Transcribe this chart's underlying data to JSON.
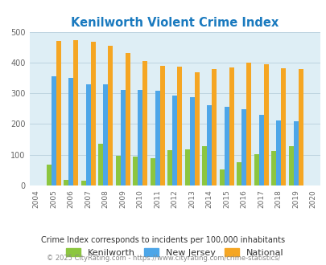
{
  "title": "Kenilworth Violent Crime Index",
  "title_color": "#1a7abf",
  "years": [
    2004,
    2005,
    2006,
    2007,
    2008,
    2009,
    2010,
    2011,
    2012,
    2013,
    2014,
    2015,
    2016,
    2017,
    2018,
    2019,
    2020
  ],
  "kenilworth": [
    null,
    68,
    18,
    15,
    135,
    97,
    95,
    90,
    115,
    117,
    128,
    53,
    77,
    101,
    113,
    128,
    null
  ],
  "new_jersey": [
    null,
    355,
    351,
    330,
    330,
    312,
    310,
    309,
    292,
    288,
    261,
    255,
    247,
    231,
    211,
    208,
    null
  ],
  "national": [
    null,
    470,
    474,
    467,
    455,
    432,
    405,
    388,
    387,
    368,
    379,
    384,
    399,
    394,
    381,
    380,
    null
  ],
  "bar_width": 0.28,
  "kenilworth_color": "#8cc63f",
  "nj_color": "#4da6e8",
  "national_color": "#f5a623",
  "bg_color": "#deeef5",
  "ylim": [
    0,
    500
  ],
  "yticks": [
    0,
    100,
    200,
    300,
    400,
    500
  ],
  "legend_labels": [
    "Kenilworth",
    "New Jersey",
    "National"
  ],
  "footer1": "Crime Index corresponds to incidents per 100,000 inhabitants",
  "footer2": "© 2025 CityRating.com - https://www.cityrating.com/crime-statistics/",
  "footer1_color": "#333333",
  "footer2_color": "#888888",
  "grid_color": "#b8d0dc"
}
